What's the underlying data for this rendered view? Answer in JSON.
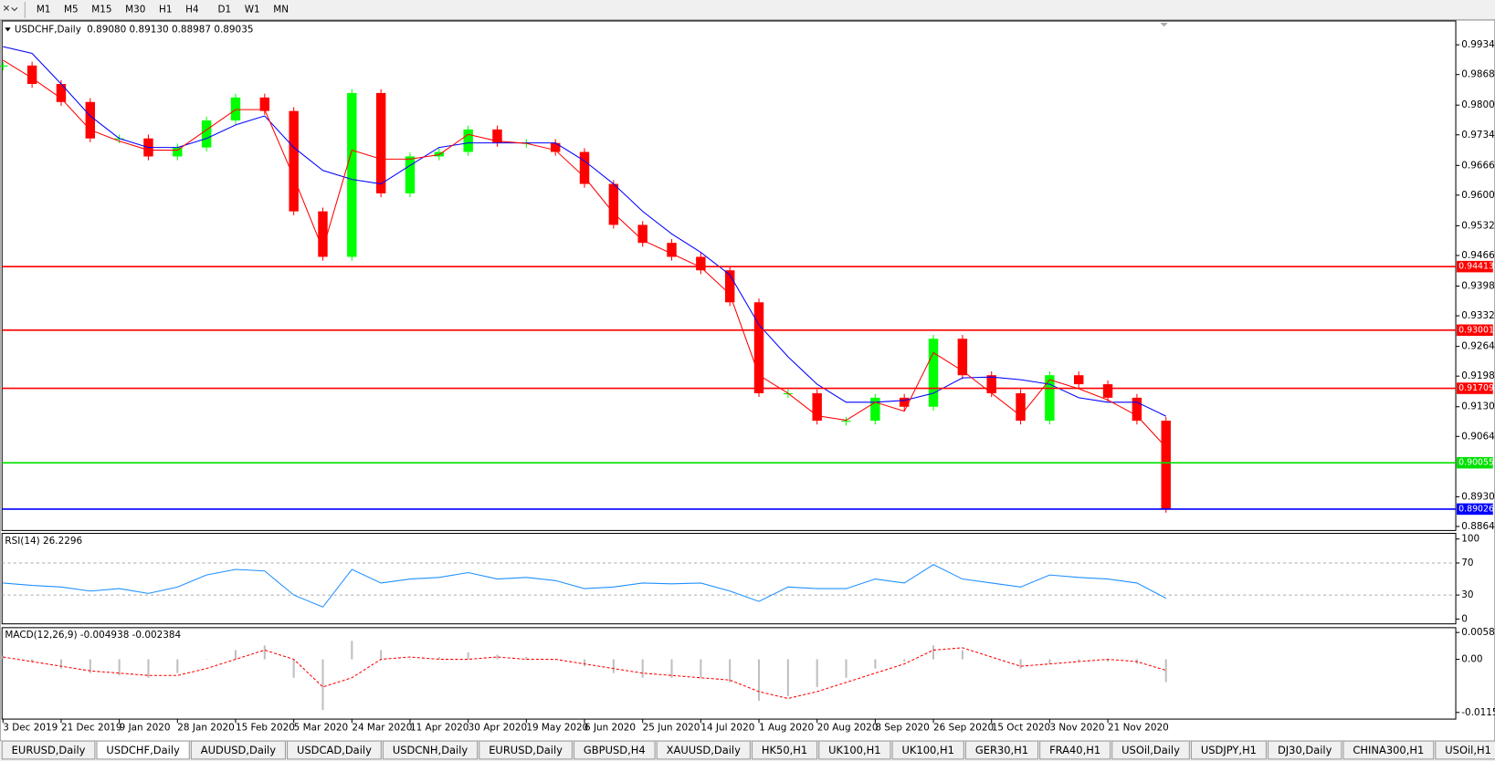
{
  "toolbar": {
    "buttons": [
      "M1",
      "M5",
      "M15",
      "M30",
      "H1",
      "H4",
      "D1",
      "W1",
      "MN"
    ]
  },
  "chart_data": [
    {
      "type": "candlestick",
      "title": "USDCHF,Daily",
      "subtitle": "0.89080 0.89130 0.88987 0.89035",
      "categories": [
        "3 Dec 2019",
        null,
        "21 Dec 2019",
        null,
        "9 Jan 2020",
        null,
        "28 Jan 2020",
        null,
        "15 Feb 2020",
        null,
        "5 Mar 2020",
        null,
        "24 Mar 2020",
        null,
        "11 Apr 2020",
        null,
        "30 Apr 2020",
        null,
        "19 May 2020",
        null,
        "6 Jun 2020",
        null,
        "25 Jun 2020",
        null,
        "14 Jul 2020",
        null,
        "1 Aug 2020",
        null,
        "20 Aug 2020",
        null,
        "8 Sep 2020",
        null,
        "26 Sep 2020",
        null,
        "15 Oct 2020",
        null,
        "3 Nov 2020",
        null,
        "21 Nov 2020",
        null,
        null
      ],
      "values": [
        0.9888,
        0.9847,
        0.9807,
        0.9726,
        0.9726,
        0.9686,
        0.9706,
        0.9766,
        0.9817,
        0.9787,
        0.9564,
        0.9463,
        0.9827,
        0.9604,
        0.9686,
        0.9696,
        0.9746,
        0.9716,
        0.9716,
        0.9696,
        0.9625,
        0.9534,
        0.9494,
        0.9463,
        0.9433,
        0.9362,
        0.916,
        0.916,
        0.9099,
        0.9099,
        0.915,
        0.913,
        0.9281,
        0.92,
        0.916,
        0.9099,
        0.92,
        0.918,
        0.915,
        0.9099,
        0.8903
      ],
      "up_color": "#00ff00",
      "down_color": "#ff0000",
      "ma_fast": {
        "color": "#ff0000",
        "values": [
          0.99,
          0.986,
          0.9815,
          0.9745,
          0.972,
          0.97,
          0.97,
          0.9745,
          0.979,
          0.979,
          0.964,
          0.948,
          0.97,
          0.968,
          0.968,
          0.969,
          0.9735,
          0.972,
          0.9715,
          0.97,
          0.964,
          0.956,
          0.95,
          0.947,
          0.944,
          0.938,
          0.92,
          0.916,
          0.911,
          0.91,
          0.914,
          0.912,
          0.925,
          0.921,
          0.916,
          0.911,
          0.919,
          0.917,
          0.9145,
          0.911,
          0.904
        ]
      },
      "ma_slow": {
        "color": "#0000ff",
        "values": [
          0.993,
          0.9915,
          0.9847,
          0.9776,
          0.9726,
          0.9706,
          0.9706,
          0.9726,
          0.9756,
          0.9776,
          0.9706,
          0.9655,
          0.9635,
          0.9625,
          0.9666,
          0.9706,
          0.9716,
          0.9716,
          0.9716,
          0.9716,
          0.9676,
          0.9625,
          0.9564,
          0.9514,
          0.9473,
          0.9423,
          0.9312,
          0.9241,
          0.918,
          0.914,
          0.914,
          0.9144,
          0.916,
          0.9194,
          0.9196,
          0.919,
          0.918,
          0.915,
          0.914,
          0.914,
          0.9109
        ]
      },
      "ylim": [
        0.8855,
        0.9987
      ],
      "yticks": [
        {
          "value": 0.9934,
          "label": "0.99340"
        },
        {
          "value": 0.9868,
          "label": "0.98680"
        },
        {
          "value": 0.98,
          "label": "0.98000"
        },
        {
          "value": 0.9734,
          "label": "0.97340"
        },
        {
          "value": 0.9666,
          "label": "0.96660"
        },
        {
          "value": 0.96,
          "label": "0.96000"
        },
        {
          "value": 0.9532,
          "label": "0.95320"
        },
        {
          "value": 0.9466,
          "label": "0.94660"
        },
        {
          "value": 0.9398,
          "label": "0.93980"
        },
        {
          "value": 0.9332,
          "label": "0.93320"
        },
        {
          "value": 0.9264,
          "label": "0.92640"
        },
        {
          "value": 0.9198,
          "label": "0.91980"
        },
        {
          "value": 0.913,
          "label": "0.91300"
        },
        {
          "value": 0.9064,
          "label": "0.90640"
        },
        {
          "value": 0.893,
          "label": "0.89300"
        },
        {
          "value": 0.8864,
          "label": "0.88640"
        }
      ],
      "levels": [
        {
          "value": 0.94413,
          "color": "#ff0000"
        },
        {
          "value": 0.93001,
          "color": "#ff0000"
        },
        {
          "value": 0.91709,
          "color": "#ff0000"
        },
        {
          "value": 0.90055,
          "color": "#00e000"
        },
        {
          "value": 0.89026,
          "color": "#0000ff"
        }
      ]
    },
    {
      "type": "line",
      "title": "RSI(14) 26.2296",
      "color": "#1e90ff",
      "values": [
        45,
        42,
        40,
        35,
        38,
        32,
        40,
        55,
        62,
        60,
        30,
        15,
        62,
        45,
        50,
        52,
        58,
        50,
        52,
        48,
        38,
        40,
        45,
        44,
        45,
        35,
        22,
        40,
        38,
        38,
        50,
        45,
        68,
        50,
        45,
        40,
        55,
        52,
        50,
        45,
        26
      ],
      "ylim": [
        -6,
        107
      ],
      "yticks": [
        0,
        30,
        70,
        100
      ],
      "dashed_levels": [
        30,
        70
      ]
    },
    {
      "type": "bar",
      "title": "MACD(12,26,9) -0.004938 -0.002384",
      "color": "#c0c0c0",
      "values": [
        0.0008,
        -0.0005,
        -0.002,
        -0.003,
        -0.0035,
        -0.004,
        -0.003,
        0.0,
        0.002,
        0.003,
        -0.004,
        -0.011,
        0.004,
        0.002,
        0.0,
        0.0005,
        0.0015,
        0.001,
        0.0005,
        0.0,
        -0.0015,
        -0.003,
        -0.004,
        -0.004,
        -0.004,
        -0.005,
        -0.009,
        -0.008,
        -0.006,
        -0.004,
        -0.002,
        -0.0005,
        0.003,
        0.002,
        0.0,
        -0.002,
        -0.001,
        -0.0005,
        -0.0005,
        -0.001,
        -0.004938
      ],
      "signal": {
        "color": "#ff0000",
        "values": [
          0.0005,
          -0.0005,
          -0.0015,
          -0.0025,
          -0.003,
          -0.0035,
          -0.0035,
          -0.002,
          0.0,
          0.002,
          0.0,
          -0.006,
          -0.004,
          0.0,
          0.0005,
          0.0,
          0.0,
          0.0005,
          0.0,
          0.0,
          -0.001,
          -0.002,
          -0.003,
          -0.0035,
          -0.004,
          -0.0045,
          -0.007,
          -0.0085,
          -0.007,
          -0.005,
          -0.003,
          -0.001,
          0.002,
          0.0025,
          0.0005,
          -0.0015,
          -0.001,
          -0.0005,
          0.0,
          -0.0005,
          -0.002384
        ]
      },
      "ylim": [
        -0.01296,
        0.00686
      ],
      "yticks": [
        0.005818,
        {
          "value": 0,
          "label": "0.00"
        },
        -0.011514
      ]
    }
  ],
  "tabs": [
    "EURUSD,Daily",
    "USDCHF,Daily",
    "AUDUSD,Daily",
    "USDCAD,Daily",
    "USDCNH,Daily",
    "EURUSD,Daily",
    "GBPUSD,H4",
    "XAUUSD,Daily",
    "HK50,H1",
    "UK100,H1",
    "UK100,H1",
    "GER30,H1",
    "FRA40,H1",
    "USOil,Daily",
    "USDJPY,H1",
    "DJ30,Daily",
    "CHINA300,H1",
    "USOil,H1"
  ],
  "active_tab": 1
}
